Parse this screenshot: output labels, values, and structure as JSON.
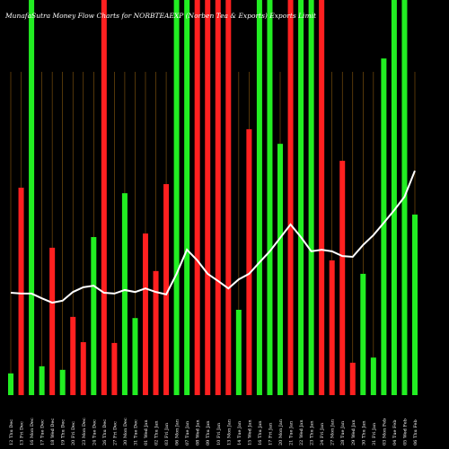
{
  "chart_data": {
    "type": "bar",
    "title": "MunafaSutra  Money Flow  Charts for NORBTEAEXP  (Norben Tea & Exports) Exports Limit",
    "categories": [
      "12 Thu Dec",
      "13 Fri Dec",
      "16 Mon Dec",
      "17 Tue Dec",
      "18 Wed Dec",
      "19 Thu Dec",
      "20 Fri Dec",
      "23 Mon Dec",
      "24 Tue Dec",
      "26 Thu Dec",
      "27 Fri Dec",
      "30 Mon Dec",
      "31 Tue Dec",
      "01 Wed Jan",
      "02 Thu Jan",
      "03 Fri Jan",
      "06 Mon Jan",
      "07 Tue Jan",
      "08 Wed Jan",
      "09 Thu Jan",
      "10 Fri Jan",
      "13 Mon Jan",
      "14 Tue Jan",
      "15 Wed Jan",
      "16 Thu Jan",
      "17 Fri Jan",
      "20 Mon Jan",
      "21 Tue Jan",
      "22 Wed Jan",
      "23 Thu Jan",
      "24 Fri Jan",
      "27 Mon Jan",
      "28 Tue Jan",
      "29 Wed Jan",
      "30 Thu Jan",
      "31 Fri Jan",
      "03 Mon Feb",
      "04 Tue Feb",
      "05 Wed Feb",
      "06 Thu Feb"
    ],
    "values": [
      5.5,
      52.5,
      100,
      7.3,
      37.3,
      6.4,
      19.8,
      13.4,
      40,
      100,
      13.2,
      51.1,
      19.5,
      40.9,
      31.4,
      53.4,
      100,
      100,
      100,
      100,
      100,
      100,
      21.6,
      67.3,
      100,
      100,
      63.6,
      100,
      100,
      100,
      100,
      34.1,
      59.3,
      8.2,
      30.7,
      9.5,
      85.2,
      100,
      100,
      45.7
    ],
    "colors": [
      "#22ee22",
      "#ff2020",
      "#22ee22",
      "#22ee22",
      "#ff2020",
      "#22ee22",
      "#ff2020",
      "#ff2020",
      "#22ee22",
      "#ff2020",
      "#ff2020",
      "#22ee22",
      "#22ee22",
      "#ff2020",
      "#ff2020",
      "#ff2020",
      "#22ee22",
      "#22ee22",
      "#ff2020",
      "#ff2020",
      "#ff2020",
      "#ff2020",
      "#22ee22",
      "#ff2020",
      "#22ee22",
      "#22ee22",
      "#22ee22",
      "#ff2020",
      "#22ee22",
      "#22ee22",
      "#ff2020",
      "#ff2020",
      "#ff2020",
      "#ff2020",
      "#22ee22",
      "#22ee22",
      "#22ee22",
      "#22ee22",
      "#22ee22",
      "#22ee22"
    ],
    "line": {
      "color": "#ffffff",
      "values": [
        25.9,
        25.7,
        25.7,
        24.5,
        23.4,
        23.9,
        26.1,
        27.3,
        27.7,
        25.9,
        25.7,
        26.6,
        26.1,
        27.0,
        26.1,
        25.5,
        30.7,
        36.8,
        34.1,
        30.7,
        28.9,
        27.0,
        29.3,
        30.7,
        33.6,
        36.4,
        39.8,
        43.2,
        40,
        36.4,
        36.8,
        36.4,
        35.2,
        35,
        38,
        40.5,
        43.6,
        46.8,
        50.2,
        56.8
      ]
    },
    "ylim": [
      0,
      100
    ]
  }
}
